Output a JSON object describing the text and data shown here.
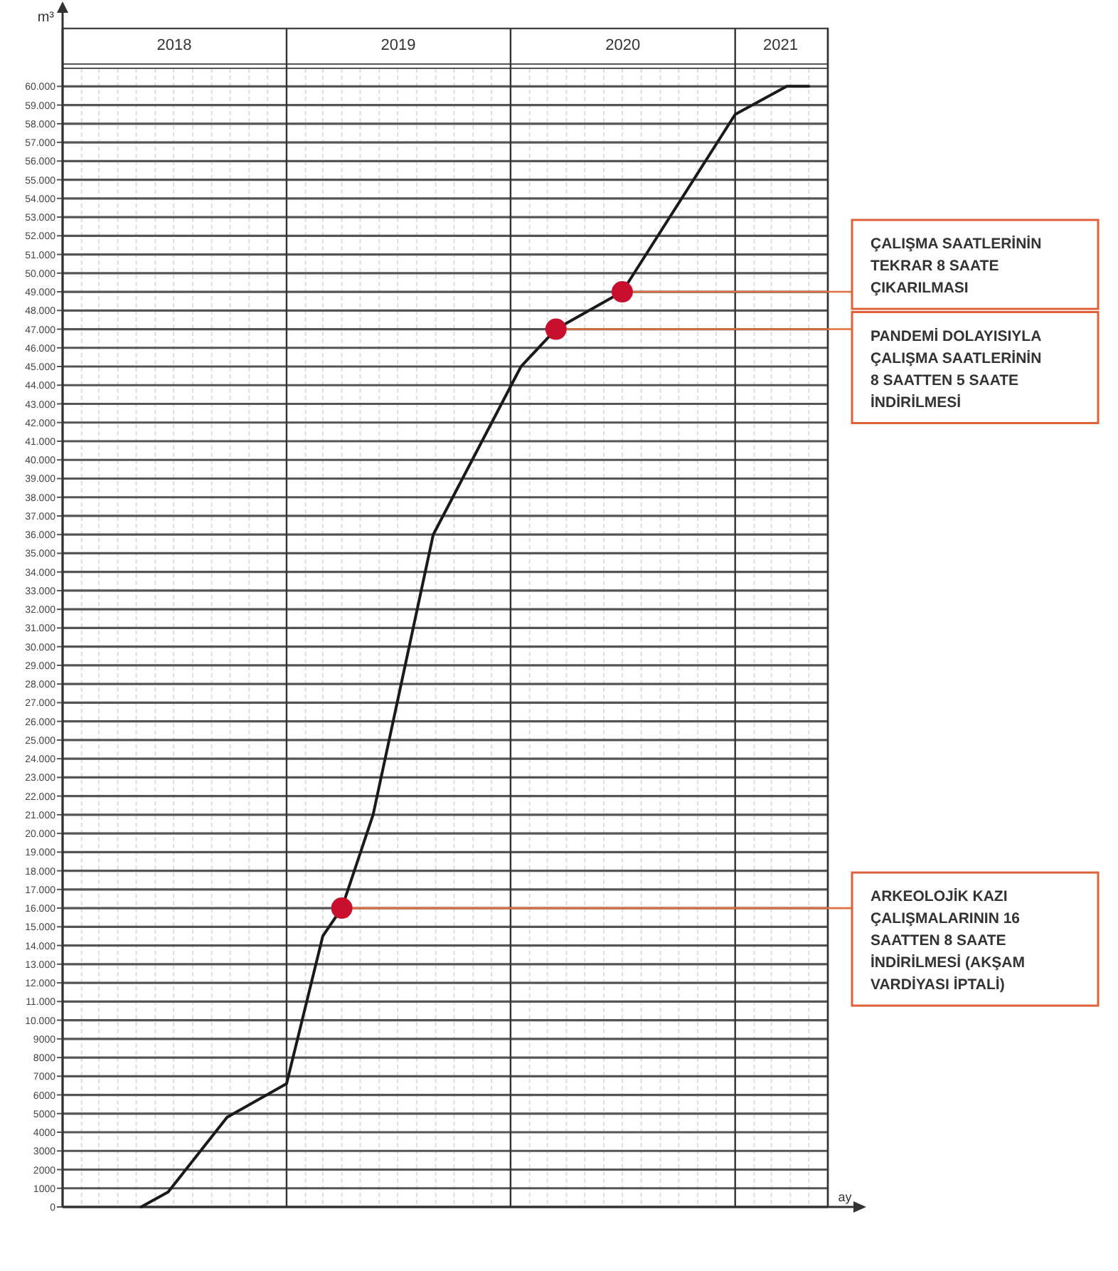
{
  "chart_data": {
    "type": "line",
    "xlabel": "ay",
    "ylabel": "m³",
    "xlim": [
      "2018-01-01",
      "2021-06-01"
    ],
    "xticks": [
      {
        "value": "2018-07-02",
        "label": "2018"
      },
      {
        "value": "2019-07-02",
        "label": "2019"
      },
      {
        "value": "2020-07-02",
        "label": "2020"
      },
      {
        "value": "2021-03-16",
        "label": "2021"
      }
    ],
    "ylim": [
      0,
      63100
    ],
    "yticks": [
      0,
      1000,
      2000,
      3000,
      4000,
      5000,
      6000,
      7000,
      8000,
      9000,
      {
        "value": 10000,
        "label": "10.000"
      },
      {
        "value": 11000,
        "label": "11.000"
      },
      {
        "value": 12000,
        "label": "12.000"
      },
      {
        "value": 13000,
        "label": "13.000"
      },
      {
        "value": 14000,
        "label": "14.000"
      },
      {
        "value": 15000,
        "label": "15.000"
      },
      {
        "value": 16000,
        "label": "16.000"
      },
      {
        "value": 17000,
        "label": "17.000"
      },
      {
        "value": 18000,
        "label": "18.000"
      },
      {
        "value": 19000,
        "label": "19.000"
      },
      {
        "value": 20000,
        "label": "20.000"
      },
      {
        "value": 21000,
        "label": "21.000"
      },
      {
        "value": 22000,
        "label": "22.000"
      },
      {
        "value": 23000,
        "label": "23.000"
      },
      {
        "value": 24000,
        "label": "24.000"
      },
      {
        "value": 25000,
        "label": "25.000"
      },
      {
        "value": 26000,
        "label": "26.000"
      },
      {
        "value": 27000,
        "label": "27.000"
      },
      {
        "value": 28000,
        "label": "28.000"
      },
      {
        "value": 29000,
        "label": "29.000"
      },
      {
        "value": 30000,
        "label": "30.000"
      },
      {
        "value": 31000,
        "label": "31.000"
      },
      {
        "value": 32000,
        "label": "32.000"
      },
      {
        "value": 33000,
        "label": "33.000"
      },
      {
        "value": 34000,
        "label": "34.000"
      },
      {
        "value": 35000,
        "label": "35.000"
      },
      {
        "value": 36000,
        "label": "36.000"
      },
      {
        "value": 37000,
        "label": "37.000"
      },
      {
        "value": 38000,
        "label": "38.000"
      },
      {
        "value": 39000,
        "label": "39.000"
      },
      {
        "value": 40000,
        "label": "40.000"
      },
      {
        "value": 41000,
        "label": "41.000"
      },
      {
        "value": 42000,
        "label": "42.000"
      },
      {
        "value": 43000,
        "label": "43.000"
      },
      {
        "value": 44000,
        "label": "44.000"
      },
      {
        "value": 45000,
        "label": "45.000"
      },
      {
        "value": 46000,
        "label": "46.000"
      },
      {
        "value": 47000,
        "label": "47.000"
      },
      {
        "value": 48000,
        "label": "48.000"
      },
      {
        "value": 49000,
        "label": "49.000"
      },
      {
        "value": 50000,
        "label": "50.000"
      },
      {
        "value": 51000,
        "label": "51.000"
      },
      {
        "value": 52000,
        "label": "52.000"
      },
      {
        "value": 53000,
        "label": "53.000"
      },
      {
        "value": 54000,
        "label": "54.000"
      },
      {
        "value": 55000,
        "label": "55.000"
      },
      {
        "value": 56000,
        "label": "56.000"
      },
      {
        "value": 57000,
        "label": "57.000"
      },
      {
        "value": 58000,
        "label": "58.000"
      },
      {
        "value": 59000,
        "label": "59.000"
      },
      {
        "value": 60000,
        "label": "60.000"
      }
    ],
    "grid": true,
    "series": [
      {
        "type": "line",
        "color": "#1a1a1a",
        "marker": "none",
        "x": [
          "2018-05-09",
          "2018-06-22",
          "2018-09-26",
          "2019-01-01",
          "2019-03-01",
          "2019-04-01",
          "2019-05-22",
          "2019-08-28",
          "2020-01-18",
          "2020-03-15",
          "2020-07-01",
          "2021-01-01",
          "2021-03-26",
          "2021-05-01"
        ],
        "values": [
          0,
          800,
          4800,
          6600,
          14500,
          16000,
          21000,
          36000,
          45000,
          47000,
          49000,
          58500,
          60000,
          60000
        ]
      },
      {
        "type": "scatter",
        "color": "#c8102e",
        "marker": "circle",
        "x": [
          "2019-04-01",
          "2020-03-15",
          "2020-07-01"
        ],
        "values": [
          16000,
          47000,
          49000
        ]
      }
    ],
    "annotations": [
      {
        "text": "ARKEOLOJİK KAZI ÇALIŞMALARININ 16 SAATTEN 8 SAATE İNDİRİLMESİ (AKŞAM VARDİYASI İPTALİ)",
        "x": "2019-04-01",
        "y": 16000
      },
      {
        "text": "PANDEMİ DOLAYISIYLA ÇALIŞMA SAATLERİNİN 8 SAATTEN 5 SAATE İNDİRİLMESİ",
        "x": "2020-03-15",
        "y": 47000
      },
      {
        "text": "ÇALIŞMA SAATLERİNİN TEKRAR 8 SAATE ÇIKARILMASI",
        "x": "2020-07-01",
        "y": 49000
      }
    ]
  }
}
